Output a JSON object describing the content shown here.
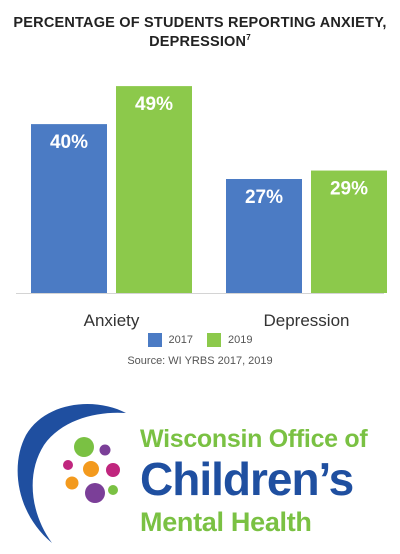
{
  "chart_data": {
    "type": "bar",
    "title": "PERCENTAGE OF STUDENTS REPORTING ANXIETY, DEPRESSION",
    "title_footnote": "7",
    "categories": [
      "Anxiety",
      "Depression"
    ],
    "series": [
      {
        "name": "2017",
        "values": [
          40,
          27
        ],
        "labels": [
          "40%",
          "27%"
        ],
        "color": "#4b7bc4"
      },
      {
        "name": "2019",
        "values": [
          49,
          29
        ],
        "labels": [
          "49%",
          "29%"
        ],
        "color": "#8cc94b"
      }
    ],
    "ylim": [
      0,
      54
    ],
    "grid": false,
    "legend": "bottom-center",
    "source": "Source: WI YRBS 2017, 2019"
  },
  "logo": {
    "line1": "Wisconsin Office of",
    "line2": "Children’s",
    "line3": "Mental Health",
    "colors": {
      "blue": "#1f4fa0",
      "green": "#7ac143",
      "orange": "#f39a1e",
      "purple": "#7b3f98",
      "magenta": "#c0267e"
    }
  }
}
